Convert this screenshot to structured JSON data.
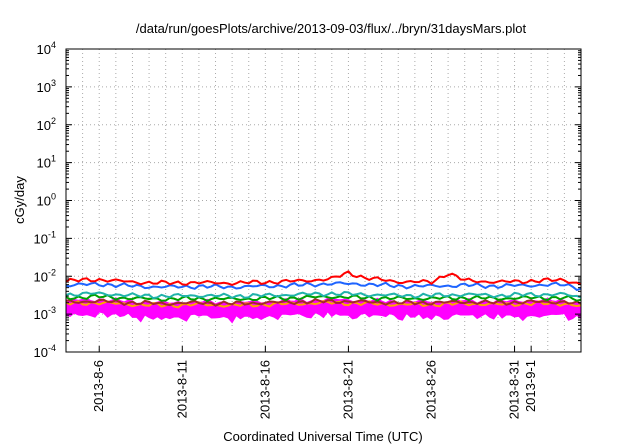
{
  "chart_data": {
    "type": "line",
    "title": "/data/run/goesPlots/archive/2013-09-03/flux/../bryn/31daysMars.plot",
    "xlabel": "Coordinated Universal Time (UTC)",
    "ylabel": "cGy/day",
    "yscale": "log",
    "ylim": [
      0.0001,
      10000
    ],
    "yticks": [
      {
        "value": 0.0001,
        "base": "10",
        "exp": "-4"
      },
      {
        "value": 0.001,
        "base": "10",
        "exp": "-3"
      },
      {
        "value": 0.01,
        "base": "10",
        "exp": "-2"
      },
      {
        "value": 0.1,
        "base": "10",
        "exp": "-1"
      },
      {
        "value": 1,
        "base": "10",
        "exp": "0"
      },
      {
        "value": 10,
        "base": "10",
        "exp": "1"
      },
      {
        "value": 100,
        "base": "10",
        "exp": "2"
      },
      {
        "value": 1000,
        "base": "10",
        "exp": "3"
      },
      {
        "value": 10000,
        "base": "10",
        "exp": "4"
      }
    ],
    "xlim": [
      "2013-08-04",
      "2013-09-04"
    ],
    "xticks": [
      {
        "date": "2013-08-06",
        "label": "2013-8-6"
      },
      {
        "date": "2013-08-11",
        "label": "2013-8-11"
      },
      {
        "date": "2013-08-16",
        "label": "2013-8-16"
      },
      {
        "date": "2013-08-21",
        "label": "2013-8-21"
      },
      {
        "date": "2013-08-26",
        "label": "2013-8-26"
      },
      {
        "date": "2013-08-31",
        "label": "2013-8-31"
      },
      {
        "date": "2013-09-01",
        "label": "2013-9-1"
      }
    ],
    "grid": true,
    "legend": "none",
    "series": [
      {
        "color": "#ff00ff",
        "band": true,
        "points": [
          [
            "2013-08-04",
            0.0015
          ],
          [
            "2013-08-06",
            0.0016
          ],
          [
            "2013-08-08",
            0.0014
          ],
          [
            "2013-08-10",
            0.0013
          ],
          [
            "2013-08-12",
            0.0014
          ],
          [
            "2013-08-14",
            0.0013
          ],
          [
            "2013-08-16",
            0.0014
          ],
          [
            "2013-08-18",
            0.0015
          ],
          [
            "2013-08-20",
            0.0016
          ],
          [
            "2013-08-22",
            0.0015
          ],
          [
            "2013-08-24",
            0.0014
          ],
          [
            "2013-08-26",
            0.0014
          ],
          [
            "2013-08-28",
            0.0015
          ],
          [
            "2013-08-30",
            0.0014
          ],
          [
            "2013-09-01",
            0.0015
          ],
          [
            "2013-09-03",
            0.0015
          ],
          [
            "2013-09-04",
            0.0012
          ]
        ]
      },
      {
        "color": "#ffa500",
        "points": [
          [
            "2013-08-04",
            0.0019
          ],
          [
            "2013-08-06",
            0.002
          ],
          [
            "2013-08-08",
            0.0018
          ],
          [
            "2013-08-10",
            0.0017
          ],
          [
            "2013-08-12",
            0.0018
          ],
          [
            "2013-08-14",
            0.0017
          ],
          [
            "2013-08-16",
            0.0018
          ],
          [
            "2013-08-18",
            0.0019
          ],
          [
            "2013-08-20",
            0.002
          ],
          [
            "2013-08-22",
            0.0019
          ],
          [
            "2013-08-24",
            0.0018
          ],
          [
            "2013-08-26",
            0.0018
          ],
          [
            "2013-08-28",
            0.0019
          ],
          [
            "2013-08-30",
            0.0018
          ],
          [
            "2013-09-01",
            0.0019
          ],
          [
            "2013-09-03",
            0.0019
          ],
          [
            "2013-09-04",
            0.0016
          ]
        ]
      },
      {
        "color": "#a52a2a",
        "points": [
          [
            "2013-08-04",
            0.0021
          ],
          [
            "2013-08-06",
            0.0022
          ],
          [
            "2013-08-08",
            0.002
          ],
          [
            "2013-08-10",
            0.0019
          ],
          [
            "2013-08-12",
            0.002
          ],
          [
            "2013-08-14",
            0.0019
          ],
          [
            "2013-08-16",
            0.002
          ],
          [
            "2013-08-18",
            0.0021
          ],
          [
            "2013-08-20",
            0.0022
          ],
          [
            "2013-08-22",
            0.0021
          ],
          [
            "2013-08-24",
            0.002
          ],
          [
            "2013-08-26",
            0.002
          ],
          [
            "2013-08-28",
            0.0021
          ],
          [
            "2013-08-30",
            0.002
          ],
          [
            "2013-09-01",
            0.0021
          ],
          [
            "2013-09-03",
            0.0021
          ],
          [
            "2013-09-04",
            0.0018
          ]
        ]
      },
      {
        "color": "#00a000",
        "points": [
          [
            "2013-08-04",
            0.0027
          ],
          [
            "2013-08-06",
            0.0029
          ],
          [
            "2013-08-08",
            0.0026
          ],
          [
            "2013-08-10",
            0.0025
          ],
          [
            "2013-08-12",
            0.0026
          ],
          [
            "2013-08-14",
            0.0025
          ],
          [
            "2013-08-16",
            0.0026
          ],
          [
            "2013-08-18",
            0.0027
          ],
          [
            "2013-08-20",
            0.0029
          ],
          [
            "2013-08-22",
            0.0027
          ],
          [
            "2013-08-24",
            0.0026
          ],
          [
            "2013-08-26",
            0.0026
          ],
          [
            "2013-08-28",
            0.0027
          ],
          [
            "2013-08-30",
            0.0026
          ],
          [
            "2013-09-01",
            0.0027
          ],
          [
            "2013-09-03",
            0.0027
          ],
          [
            "2013-09-04",
            0.0023
          ]
        ]
      },
      {
        "color": "#20b2aa",
        "points": [
          [
            "2013-08-04",
            0.0033
          ],
          [
            "2013-08-06",
            0.0035
          ],
          [
            "2013-08-08",
            0.0031
          ],
          [
            "2013-08-10",
            0.003
          ],
          [
            "2013-08-12",
            0.0031
          ],
          [
            "2013-08-14",
            0.003
          ],
          [
            "2013-08-16",
            0.0031
          ],
          [
            "2013-08-18",
            0.0033
          ],
          [
            "2013-08-20",
            0.0035
          ],
          [
            "2013-08-22",
            0.0033
          ],
          [
            "2013-08-24",
            0.0031
          ],
          [
            "2013-08-26",
            0.0031
          ],
          [
            "2013-08-28",
            0.0033
          ],
          [
            "2013-08-30",
            0.0031
          ],
          [
            "2013-09-01",
            0.0033
          ],
          [
            "2013-09-03",
            0.0033
          ],
          [
            "2013-09-04",
            0.0028
          ]
        ]
      },
      {
        "color": "#1e64ff",
        "points": [
          [
            "2013-08-04",
            0.0058
          ],
          [
            "2013-08-06",
            0.0062
          ],
          [
            "2013-08-08",
            0.0055
          ],
          [
            "2013-08-10",
            0.0052
          ],
          [
            "2013-08-12",
            0.0054
          ],
          [
            "2013-08-14",
            0.0052
          ],
          [
            "2013-08-16",
            0.0055
          ],
          [
            "2013-08-18",
            0.0058
          ],
          [
            "2013-08-20",
            0.0064
          ],
          [
            "2013-08-22",
            0.0062
          ],
          [
            "2013-08-24",
            0.0055
          ],
          [
            "2013-08-26",
            0.0055
          ],
          [
            "2013-08-28",
            0.0058
          ],
          [
            "2013-08-30",
            0.0055
          ],
          [
            "2013-09-01",
            0.0058
          ],
          [
            "2013-09-03",
            0.006
          ],
          [
            "2013-09-04",
            0.0048
          ]
        ]
      },
      {
        "color": "#ff0000",
        "points": [
          [
            "2013-08-04",
            0.0075
          ],
          [
            "2013-08-06",
            0.0082
          ],
          [
            "2013-08-08",
            0.007
          ],
          [
            "2013-08-10",
            0.0066
          ],
          [
            "2013-08-12",
            0.0068
          ],
          [
            "2013-08-14",
            0.0066
          ],
          [
            "2013-08-16",
            0.007
          ],
          [
            "2013-08-18",
            0.0075
          ],
          [
            "2013-08-20",
            0.0085
          ],
          [
            "2013-08-21",
            0.0125
          ],
          [
            "2013-08-22",
            0.009
          ],
          [
            "2013-08-24",
            0.0072
          ],
          [
            "2013-08-26",
            0.007
          ],
          [
            "2013-08-27",
            0.012
          ],
          [
            "2013-08-28",
            0.0078
          ],
          [
            "2013-08-30",
            0.007
          ],
          [
            "2013-09-01",
            0.0075
          ],
          [
            "2013-09-03",
            0.008
          ],
          [
            "2013-09-04",
            0.0062
          ]
        ]
      }
    ]
  }
}
